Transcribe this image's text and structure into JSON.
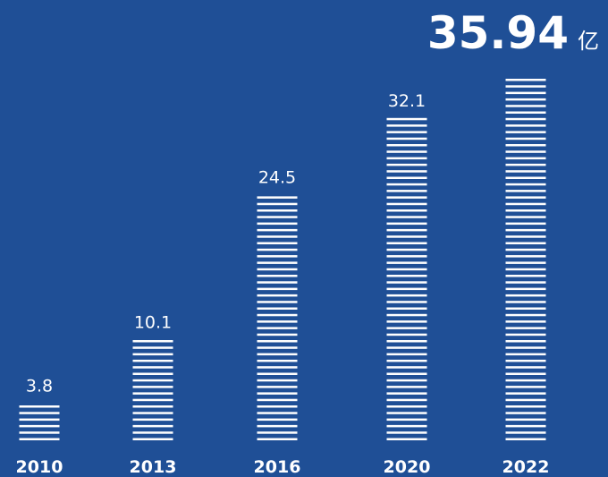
{
  "colors": {
    "background": "#1f4f96",
    "bar": "#ffffff",
    "text": "#ffffff"
  },
  "chart_data": {
    "type": "bar",
    "categories": [
      "2010",
      "2013",
      "2016",
      "2020",
      "2022"
    ],
    "values": [
      3.8,
      10.1,
      24.5,
      32.1,
      35.94
    ],
    "value_labels": [
      "3.8",
      "10.1",
      "24.5",
      "32.1",
      "35.94"
    ],
    "unit": "亿",
    "title": "",
    "xlabel": "",
    "ylabel": "",
    "ylim": [
      0,
      35.94
    ],
    "grid": false,
    "legend": "none",
    "bar_style": "horizontal-striped"
  }
}
